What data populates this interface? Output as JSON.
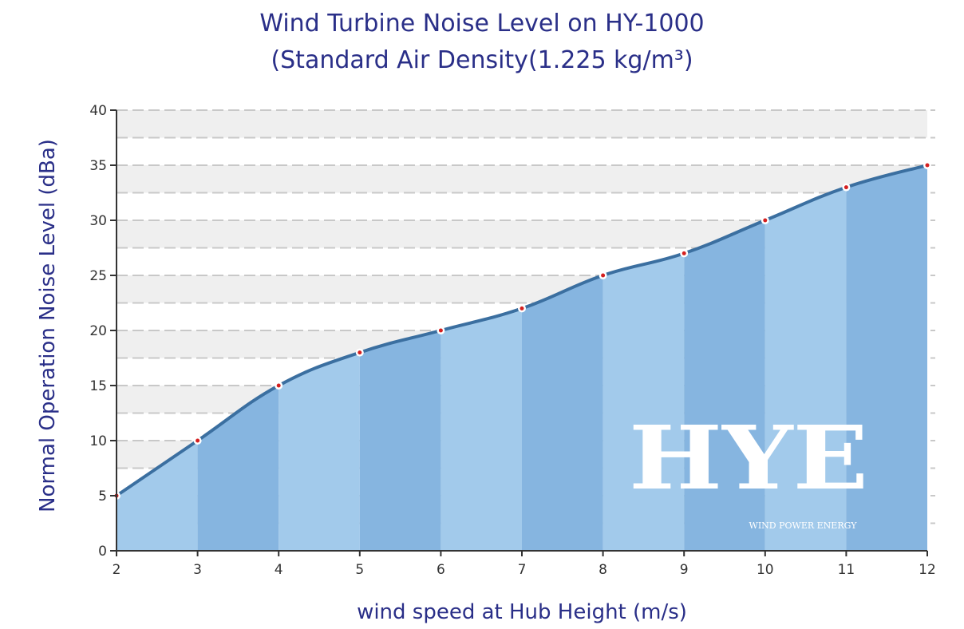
{
  "chart_data": {
    "type": "area",
    "title": "Wind Turbine Noise Level on HY-1000",
    "subtitle": "(Standard Air Density(1.225 kg/m³)",
    "xlabel": "wind speed at Hub Height  (m/s)",
    "ylabel": "Normal Operation Noise  Level (dBa)",
    "x": [
      2,
      3,
      4,
      5,
      6,
      7,
      8,
      9,
      10,
      11,
      12
    ],
    "y": [
      5,
      10,
      15,
      18,
      20,
      22,
      25,
      27,
      30,
      33,
      35
    ],
    "xlim": [
      2,
      12
    ],
    "ylim": [
      0,
      40
    ],
    "xticks": [
      2,
      3,
      4,
      5,
      6,
      7,
      8,
      9,
      10,
      11,
      12
    ],
    "yticks": [
      0,
      5,
      10,
      15,
      20,
      25,
      30,
      35,
      40
    ],
    "grid": true,
    "smoothed": true,
    "colors": {
      "line": "#3b6fa0",
      "fill_light": "#a2caeb",
      "fill_dark": "#86b5e0",
      "marker": "#d42020",
      "band": "#efefef",
      "text": "#2a2f88"
    },
    "watermark": {
      "logo": "HYE",
      "tagline": "WIND POWER ENERGY"
    }
  }
}
